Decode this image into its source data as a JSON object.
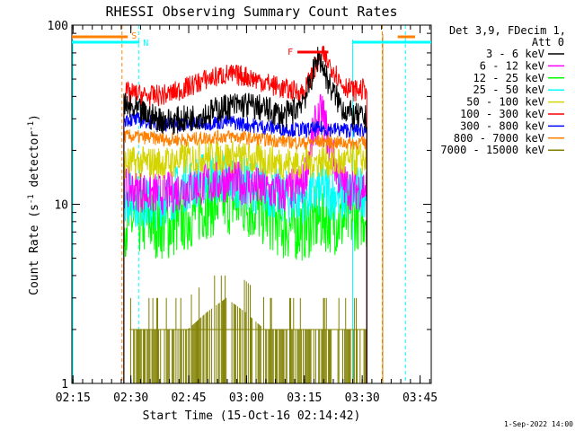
{
  "chart_data": {
    "type": "line",
    "title": "RHESSI Observing Summary Count Rates",
    "xlabel": "Start Time (15-Oct-16 02:14:42)",
    "ylabel_main": "Count Rate (s",
    "ylabel_sup1": "-1",
    "ylabel_mid": " detector",
    "ylabel_sup2": "-1",
    "ylabel_end": ")",
    "yscale": "log",
    "ylim": [
      1,
      100
    ],
    "xlim_minutes": [
      0,
      93.2
    ],
    "x_ticks": [
      {
        "label": "02:15",
        "minute": 0.3
      },
      {
        "label": "02:30",
        "minute": 15.3
      },
      {
        "label": "02:45",
        "minute": 30.3
      },
      {
        "label": "03:00",
        "minute": 45.3
      },
      {
        "label": "03:15",
        "minute": 60.3
      },
      {
        "label": "03:30",
        "minute": 75.3
      },
      {
        "label": "03:45",
        "minute": 90.3
      }
    ],
    "y_ticks": [
      {
        "label": "1",
        "value": 1
      },
      {
        "label": "10",
        "value": 10
      },
      {
        "label": "100",
        "value": 100
      }
    ],
    "legend": {
      "header_line1": "Det 3,9, FDecim 1,",
      "header_line2": "Att 0",
      "position": "right"
    },
    "data_window_minutes": [
      13.5,
      76.5
    ],
    "series": [
      {
        "name": "3 - 6 keV",
        "color": "#000000",
        "x": [
          14,
          20,
          25,
          30,
          35,
          40,
          45,
          50,
          55,
          58,
          61,
          64,
          67,
          70,
          73,
          76
        ],
        "y": [
          35,
          31,
          29,
          30,
          32,
          35,
          36,
          34,
          31,
          34,
          42,
          68,
          45,
          35,
          31,
          30
        ]
      },
      {
        "name": "6 - 12 keV",
        "color": "#ff00ff",
        "x": [
          14,
          20,
          25,
          30,
          35,
          40,
          45,
          50,
          55,
          60,
          63,
          65,
          67,
          70,
          73,
          76
        ],
        "y": [
          12.5,
          11.5,
          11.5,
          12.5,
          13,
          13.5,
          13,
          12,
          11.5,
          13,
          27,
          33,
          20,
          13,
          12,
          12.5
        ]
      },
      {
        "name": "12 - 25 keV",
        "color": "#00ff00",
        "x": [
          14,
          20,
          25,
          30,
          35,
          40,
          45,
          50,
          55,
          60,
          65,
          70,
          76
        ],
        "y": [
          8,
          8,
          7.5,
          8.5,
          10,
          10.5,
          10,
          9,
          7.5,
          7.5,
          8.5,
          8,
          9
        ]
      },
      {
        "name": "25 - 50 keV",
        "color": "#00ffff",
        "x": [
          14,
          20,
          25,
          30,
          35,
          40,
          45,
          50,
          55,
          60,
          65,
          70,
          76
        ],
        "y": [
          11,
          10,
          11,
          13,
          14,
          14,
          13,
          12,
          11,
          11,
          12,
          11,
          12
        ]
      },
      {
        "name": "50 - 100 keV",
        "color": "#d4d400",
        "x": [
          14,
          20,
          25,
          30,
          35,
          40,
          45,
          50,
          55,
          60,
          65,
          70,
          76
        ],
        "y": [
          17,
          17,
          17,
          18,
          18.5,
          18.5,
          18,
          17.5,
          17,
          17,
          17.5,
          17,
          18
        ]
      },
      {
        "name": "100 - 300 keV",
        "color": "#ff0000",
        "x": [
          14,
          20,
          25,
          30,
          35,
          40,
          45,
          50,
          55,
          60,
          63,
          65,
          68,
          70,
          73,
          76
        ],
        "y": [
          42,
          40,
          41,
          45,
          50,
          53,
          52,
          48,
          44,
          42,
          56,
          68,
          56,
          47,
          43,
          44
        ]
      },
      {
        "name": "300 - 800 keV",
        "color": "#0000ff",
        "x": [
          14,
          20,
          25,
          30,
          35,
          40,
          45,
          50,
          55,
          60,
          65,
          70,
          76
        ],
        "y": [
          30,
          29,
          28,
          28,
          28.5,
          29,
          28,
          27,
          26.5,
          26,
          26.5,
          26,
          26
        ]
      },
      {
        "name": "800 - 7000 keV",
        "color": "#ff8000",
        "x": [
          14,
          20,
          25,
          30,
          35,
          40,
          45,
          50,
          55,
          60,
          65,
          70,
          76
        ],
        "y": [
          24,
          23.5,
          23,
          23,
          23.5,
          24,
          23.5,
          23,
          22.5,
          22,
          22.5,
          22,
          22
        ]
      },
      {
        "name": "7000 - 15000 keV",
        "color": "#808000",
        "x": [
          15,
          20,
          25,
          30,
          35,
          40,
          45,
          50,
          55,
          60,
          65,
          70,
          76
        ],
        "y": [
          2,
          2,
          2,
          2,
          2.5,
          3,
          2.5,
          2,
          2,
          2,
          2,
          2,
          2
        ]
      }
    ],
    "annotations": {
      "saa_label": "S",
      "saa_color": "#ff8000",
      "night_label": "N",
      "night_color": "#00ffff",
      "flare_label": "F",
      "flare_color": "#ff0000",
      "saa_bar_minutes": [
        [
          0,
          14.5
        ],
        [
          84.5,
          89
        ]
      ],
      "night_bar_minutes": [
        [
          0,
          17.5
        ],
        [
          72.8,
          93.2
        ]
      ],
      "flare_bar_minutes": [
        58.5,
        66.5
      ],
      "saa_lines_minutes": [
        13,
        80.5
      ],
      "night_lines_minutes": [
        17.3,
        86.5
      ],
      "night_solid_lines_minutes": [
        0,
        72.8
      ]
    },
    "footer_date": "1-Sep-2022 14:00"
  }
}
